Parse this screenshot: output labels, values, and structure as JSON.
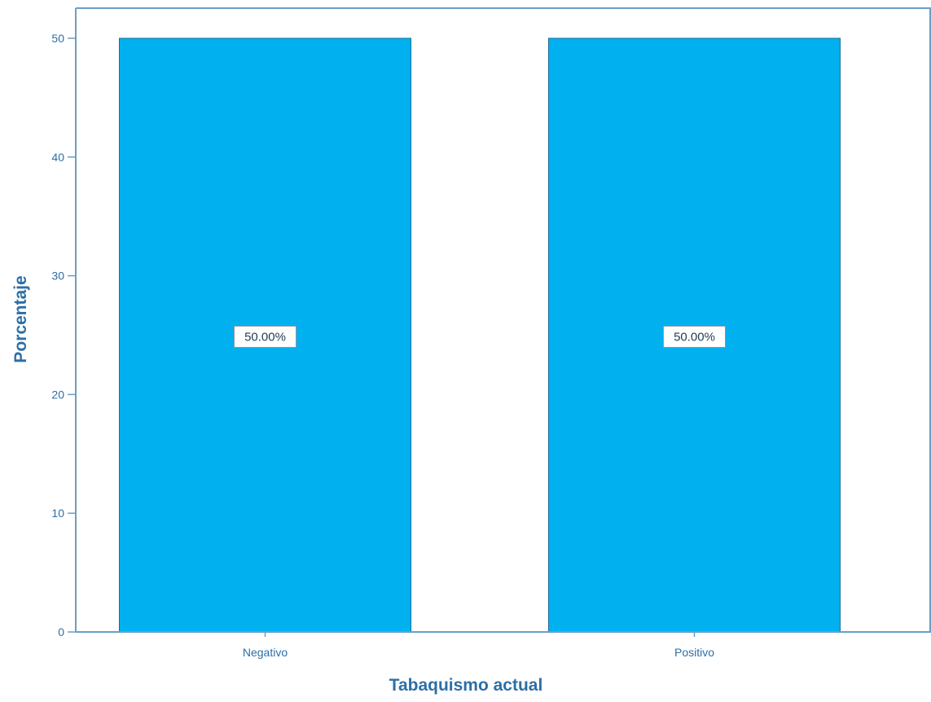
{
  "chart_data": {
    "type": "bar",
    "categories": [
      "Negativo",
      "Positivo"
    ],
    "values": [
      50,
      50
    ],
    "data_labels": [
      "50.00%",
      "50.00%"
    ],
    "xlabel": "Tabaquismo actual",
    "ylabel": "Porcentaje",
    "ylim": [
      0,
      50
    ],
    "yticks": [
      0,
      10,
      20,
      30,
      40,
      50
    ],
    "ytick_labels": [
      "0",
      "10",
      "20",
      "30",
      "40",
      "50"
    ],
    "grid": false,
    "legend": "none",
    "colors": {
      "bar_fill": "#00b0ef",
      "bar_stroke": "#1f6e9a",
      "axis": "#6a9fc7",
      "text": "#2c6fa7"
    }
  }
}
